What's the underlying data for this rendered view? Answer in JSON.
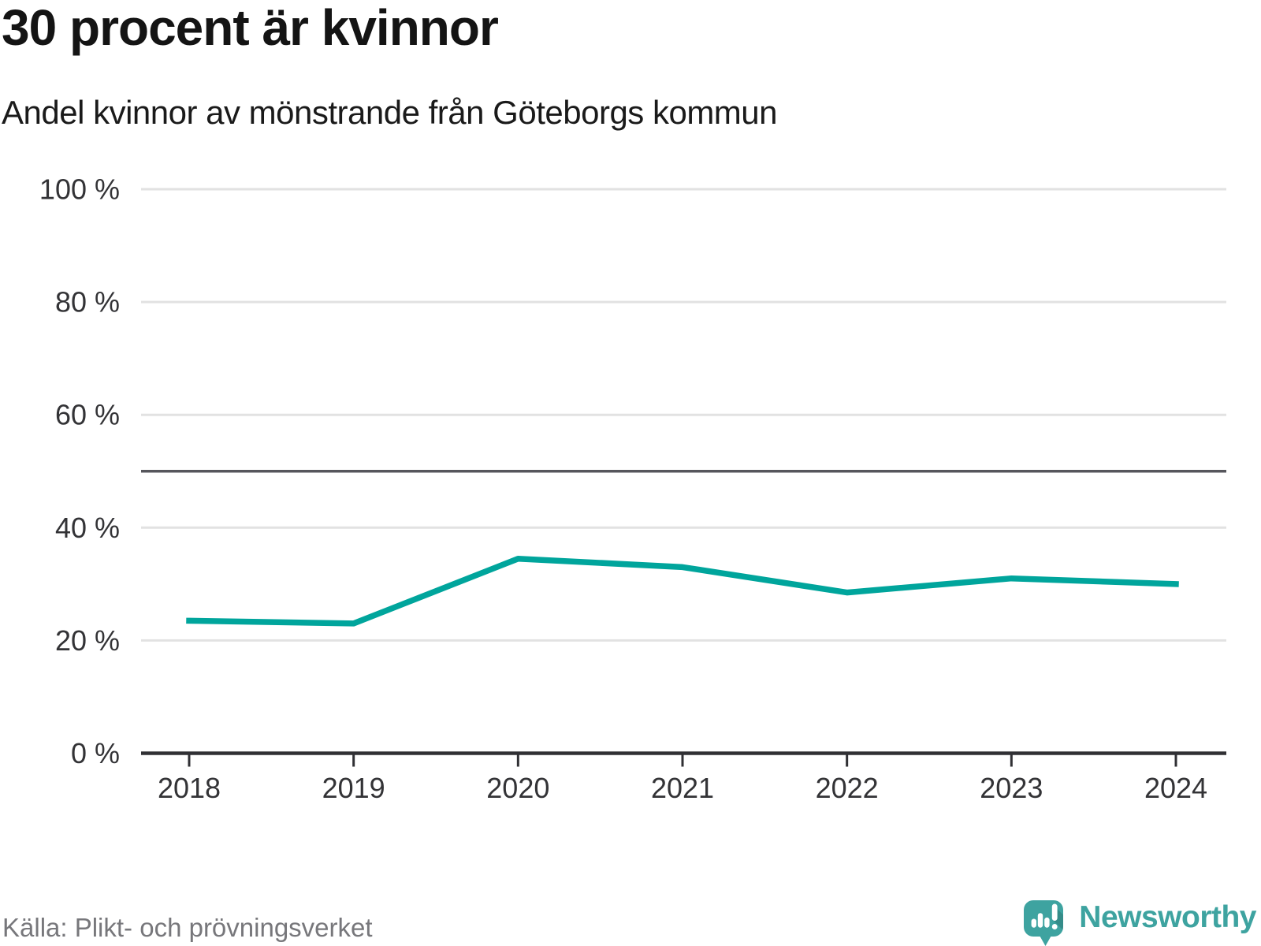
{
  "header": {
    "title": "30 procent är kvinnor",
    "subtitle": "Andel kvinnor av mönstrande från Göteborgs kommun"
  },
  "chart_data": {
    "type": "line",
    "title": "30 procent är kvinnor",
    "subtitle": "Andel kvinnor av mönstrande från Göteborgs kommun",
    "series": [
      {
        "name": "Andel kvinnor av mönstrande",
        "values": [
          23.5,
          23,
          34.5,
          33,
          28.5,
          31,
          30
        ]
      }
    ],
    "categories": [
      "2018",
      "2019",
      "2020",
      "2021",
      "2022",
      "2023",
      "2024"
    ],
    "xlabel": "",
    "ylabel": "",
    "ylim": [
      0,
      100
    ],
    "yticks": [
      {
        "value": 0,
        "label": "0 %"
      },
      {
        "value": 20,
        "label": "20 %"
      },
      {
        "value": 40,
        "label": "40 %"
      },
      {
        "value": 60,
        "label": "60 %"
      },
      {
        "value": 80,
        "label": "80 %"
      },
      {
        "value": 100,
        "label": "100 %"
      }
    ],
    "reference_line": {
      "value": 50
    },
    "grid": "horizontal",
    "legend": "none"
  },
  "footer": {
    "source": "Källa: Plikt- och prövningsverket",
    "brand": "Newsworthy"
  },
  "colors": {
    "line": "#00a59c",
    "grid": "#e2e2e2",
    "reference": "#56565c",
    "axis": "#303034",
    "tick_label": "#333336",
    "title": "#141414",
    "source_text": "#77777b",
    "brand": "#3ea3a0"
  }
}
